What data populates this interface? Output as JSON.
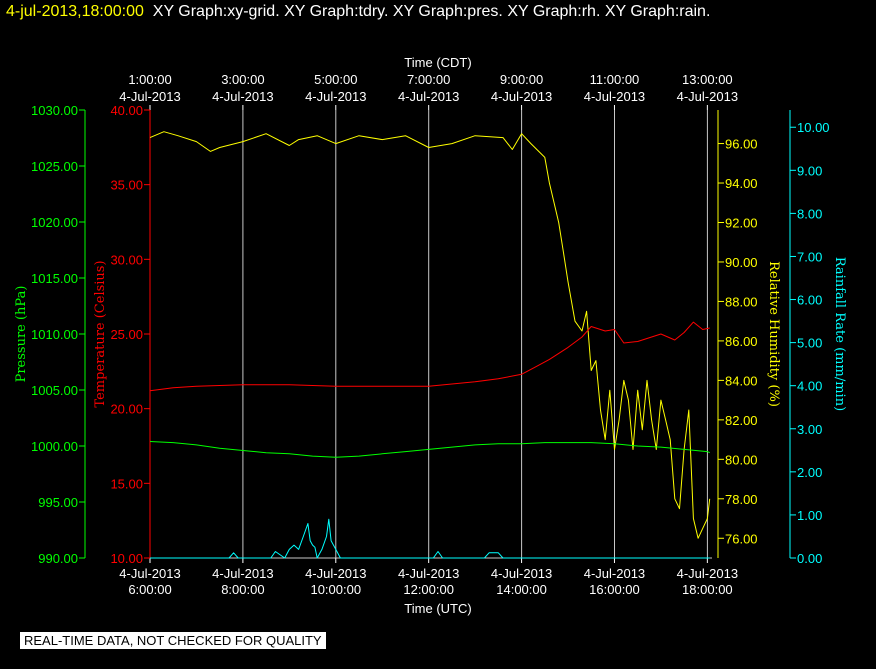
{
  "header": {
    "timestamp": "4-jul-2013,18:00:00",
    "title": "XY Graph:xy-grid.  XY Graph:tdry.  XY Graph:pres.  XY Graph:rh.  XY Graph:rain."
  },
  "disclaimer": "REAL-TIME DATA, NOT CHECKED FOR QUALITY",
  "chart_data": {
    "type": "line",
    "grid": true,
    "x_top": {
      "label": "Time (CDT)",
      "ticks": [
        {
          "h": 1,
          "line1": "1:00:00",
          "line2": "4-Jul-2013"
        },
        {
          "h": 3,
          "line1": "3:00:00",
          "line2": "4-Jul-2013"
        },
        {
          "h": 5,
          "line1": "5:00:00",
          "line2": "4-Jul-2013"
        },
        {
          "h": 7,
          "line1": "7:00:00",
          "line2": "4-Jul-2013"
        },
        {
          "h": 9,
          "line1": "9:00:00",
          "line2": "4-Jul-2013"
        },
        {
          "h": 11,
          "line1": "11:00:00",
          "line2": "4-Jul-2013"
        },
        {
          "h": 13,
          "line1": "13:00:00",
          "line2": "4-Jul-2013"
        }
      ]
    },
    "x_bottom": {
      "label": "Time (UTC)",
      "range": [
        6,
        18.1
      ],
      "ticks": [
        {
          "h": 6,
          "line1": "4-Jul-2013",
          "line2": "6:00:00"
        },
        {
          "h": 8,
          "line1": "4-Jul-2013",
          "line2": "8:00:00"
        },
        {
          "h": 10,
          "line1": "4-Jul-2013",
          "line2": "10:00:00"
        },
        {
          "h": 12,
          "line1": "4-Jul-2013",
          "line2": "12:00:00"
        },
        {
          "h": 14,
          "line1": "4-Jul-2013",
          "line2": "14:00:00"
        },
        {
          "h": 16,
          "line1": "4-Jul-2013",
          "line2": "16:00:00"
        },
        {
          "h": 18,
          "line1": "4-Jul-2013",
          "line2": "18:00:00"
        }
      ]
    },
    "axes": {
      "pressure": {
        "label": "Pressure (hPa)",
        "color": "#00ff00",
        "range": [
          990,
          1030
        ],
        "ticks": [
          "990.00",
          "995.00",
          "1000.00",
          "1005.00",
          "1010.00",
          "1015.00",
          "1020.00",
          "1025.00",
          "1030.00"
        ]
      },
      "temperature": {
        "label": "Temperature (Celsius)",
        "color": "#ff0000",
        "range": [
          10,
          40
        ],
        "ticks": [
          "10.00",
          "15.00",
          "20.00",
          "25.00",
          "30.00",
          "35.00",
          "40.00"
        ]
      },
      "rh": {
        "label": "Relative Humidity (%)",
        "color": "#ffff00",
        "range": [
          75,
          97.7
        ],
        "ticks": [
          "76.00",
          "78.00",
          "80.00",
          "82.00",
          "84.00",
          "86.00",
          "88.00",
          "90.00",
          "92.00",
          "94.00",
          "96.00"
        ]
      },
      "rain": {
        "label": "Rainfall Rate (mm/min)",
        "color": "#00ffff",
        "range": [
          0,
          10.4
        ],
        "ticks": [
          "0.00",
          "1.00",
          "2.00",
          "3.00",
          "4.00",
          "5.00",
          "6.00",
          "7.00",
          "8.00",
          "9.00",
          "10.00"
        ]
      }
    },
    "series": [
      {
        "axis": "rh",
        "color": "#ffff00",
        "x": [
          6,
          6.3,
          6.6,
          7.0,
          7.3,
          7.5,
          8.0,
          8.5,
          9.0,
          9.2,
          9.6,
          10.0,
          10.5,
          11.0,
          11.5,
          12.0,
          12.5,
          13.0,
          13.6,
          13.8,
          14.0,
          14.2,
          14.5,
          14.6,
          14.8,
          14.9,
          15.0,
          15.15,
          15.3,
          15.4,
          15.5,
          15.6,
          15.7,
          15.8,
          15.9,
          16.0,
          16.1,
          16.2,
          16.3,
          16.4,
          16.5,
          16.6,
          16.7,
          16.8,
          16.9,
          17.0,
          17.1,
          17.2,
          17.3,
          17.4,
          17.5,
          17.6,
          17.7,
          17.8,
          17.9,
          18.0,
          18.05
        ],
        "y": [
          96.3,
          96.6,
          96.4,
          96.1,
          95.6,
          95.8,
          96.1,
          96.5,
          95.9,
          96.2,
          96.4,
          96.0,
          96.4,
          96.2,
          96.4,
          95.8,
          96.0,
          96.4,
          96.3,
          95.7,
          96.5,
          96.0,
          95.3,
          94.0,
          92.0,
          90.5,
          89.0,
          87.0,
          86.5,
          87.5,
          84.5,
          85.0,
          82.5,
          81.0,
          83.5,
          80.5,
          82.0,
          84.0,
          83.0,
          80.5,
          83.5,
          81.5,
          84.0,
          82.0,
          80.5,
          83.0,
          82.0,
          81.0,
          78.0,
          77.5,
          80.5,
          82.5,
          77.0,
          76.0,
          76.5,
          77.0,
          78.0
        ]
      },
      {
        "axis": "temperature",
        "color": "#ff0000",
        "x": [
          6,
          6.5,
          7,
          8,
          9,
          10,
          11,
          12,
          13,
          13.5,
          14,
          14.3,
          14.6,
          15.0,
          15.3,
          15.5,
          15.8,
          16.0,
          16.2,
          16.5,
          16.8,
          17.0,
          17.3,
          17.5,
          17.7,
          17.9,
          18.05
        ],
        "y": [
          21.2,
          21.4,
          21.5,
          21.6,
          21.6,
          21.5,
          21.5,
          21.5,
          21.8,
          22.0,
          22.3,
          22.8,
          23.3,
          24.1,
          24.8,
          25.5,
          25.2,
          25.3,
          24.4,
          24.5,
          24.8,
          25.0,
          24.6,
          25.1,
          25.8,
          25.3,
          25.4
        ]
      },
      {
        "axis": "pressure",
        "color": "#00ff00",
        "x": [
          6,
          6.5,
          7,
          7.5,
          8,
          8.5,
          9,
          9.5,
          10,
          10.5,
          11,
          11.5,
          12,
          12.5,
          13,
          13.5,
          14,
          14.5,
          15,
          15.5,
          16,
          16.5,
          17,
          17.5,
          18,
          18.05
        ],
        "y": [
          1000.4,
          1000.3,
          1000.1,
          999.8,
          999.6,
          999.4,
          999.3,
          999.1,
          999.0,
          999.1,
          999.3,
          999.5,
          999.7,
          999.9,
          1000.1,
          1000.2,
          1000.2,
          1000.3,
          1000.3,
          1000.3,
          1000.2,
          1000.0,
          999.9,
          999.7,
          999.5,
          999.4
        ]
      },
      {
        "axis": "rain",
        "color": "#00ffff",
        "x": [
          6,
          7.7,
          7.8,
          7.9,
          8.6,
          8.7,
          8.9,
          9.0,
          9.1,
          9.2,
          9.3,
          9.4,
          9.45,
          9.5,
          9.55,
          9.6,
          9.7,
          9.8,
          9.85,
          9.9,
          10.0,
          10.1,
          12.1,
          12.2,
          12.3,
          13.2,
          13.3,
          13.5,
          13.6,
          18.05
        ],
        "y": [
          0,
          0,
          0.12,
          0,
          0,
          0.15,
          0,
          0.2,
          0.3,
          0.2,
          0.5,
          0.8,
          0.4,
          0.3,
          0.25,
          0,
          0.2,
          0.5,
          0.9,
          0.4,
          0.2,
          0,
          0,
          0.15,
          0,
          0,
          0.12,
          0.12,
          0,
          0
        ]
      }
    ]
  }
}
